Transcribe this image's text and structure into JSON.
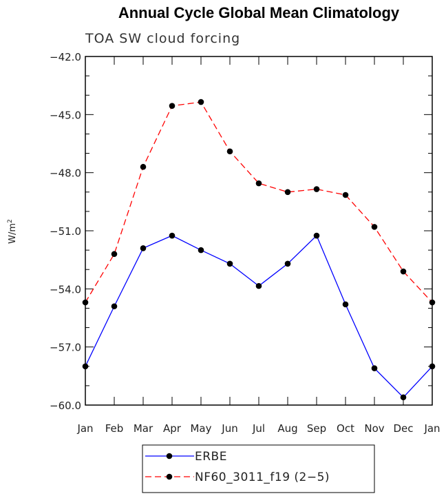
{
  "chart_data": {
    "type": "line",
    "title": "Annual Cycle Global Mean Climatology",
    "subtitle": "TOA SW cloud forcing",
    "xlabel": "",
    "ylabel": "W/m",
    "ylabel_superscript": "2",
    "categories": [
      "Jan",
      "Feb",
      "Mar",
      "Apr",
      "May",
      "Jun",
      "Jul",
      "Aug",
      "Sep",
      "Oct",
      "Nov",
      "Dec",
      "Jan"
    ],
    "ylim": [
      -60.0,
      -42.0
    ],
    "yticks": [
      -42.0,
      -45.0,
      -48.0,
      -51.0,
      -54.0,
      -57.0,
      -60.0
    ],
    "ytick_labels": [
      "−42.0",
      "−45.0",
      "−48.0",
      "−51.0",
      "−54.0",
      "−57.0",
      "−60.0"
    ],
    "grid": false,
    "legend_position": "bottom-center",
    "series": [
      {
        "name": "ERBE",
        "color": "#0000ff",
        "dash": "solid",
        "values": [
          -58.0,
          -54.9,
          -51.9,
          -51.25,
          -52.0,
          -52.7,
          -53.85,
          -52.7,
          -51.25,
          -54.8,
          -58.1,
          -59.6,
          -58.0
        ]
      },
      {
        "name": "NF60_3011_f19 (2−5)",
        "color": "#ff0000",
        "dash": "dashed",
        "values": [
          -54.7,
          -52.2,
          -47.7,
          -44.55,
          -44.35,
          -46.9,
          -48.55,
          -49.0,
          -48.85,
          -49.15,
          -50.8,
          -53.1,
          -54.7
        ]
      }
    ]
  }
}
